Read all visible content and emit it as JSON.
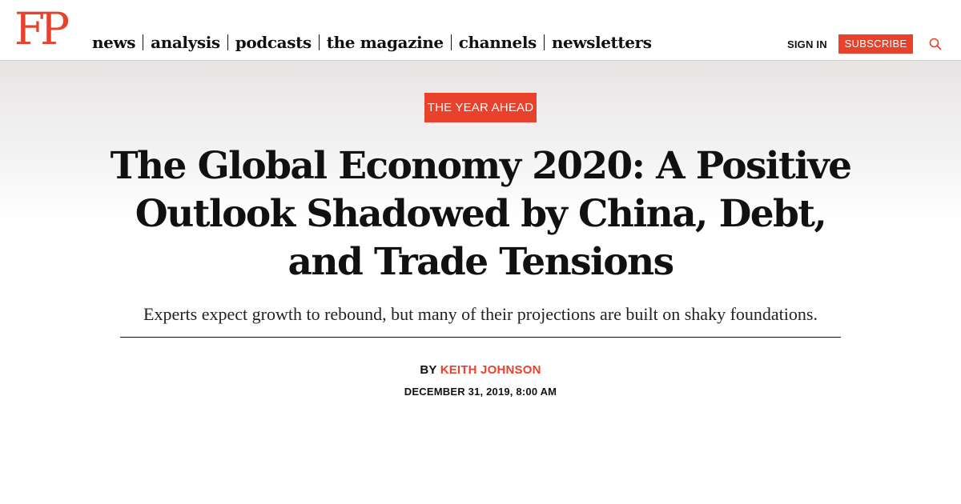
{
  "header": {
    "logo": "FP",
    "nav": [
      {
        "label": "news"
      },
      {
        "label": "analysis"
      },
      {
        "label": "podcasts"
      },
      {
        "label": "the magazine"
      },
      {
        "label": "channels"
      },
      {
        "label": "newsletters"
      }
    ],
    "sign_in": "SIGN IN",
    "subscribe": "SUBSCRIBE",
    "search_icon": "search-icon"
  },
  "article": {
    "category": "THE YEAR AHEAD",
    "headline": "The Global Economy 2020: A Positive Outlook Shadowed by China, Debt, and Trade Tensions",
    "dek": "Experts expect growth to rebound, but many of their projections are built on shaky foundations.",
    "byline_prefix": "BY",
    "author": "KEITH JOHNSON",
    "date": "DECEMBER 31, 2019, 8:00 AM"
  },
  "colors": {
    "accent": "#e8412c",
    "text": "#111111",
    "background": "#ffffff"
  }
}
